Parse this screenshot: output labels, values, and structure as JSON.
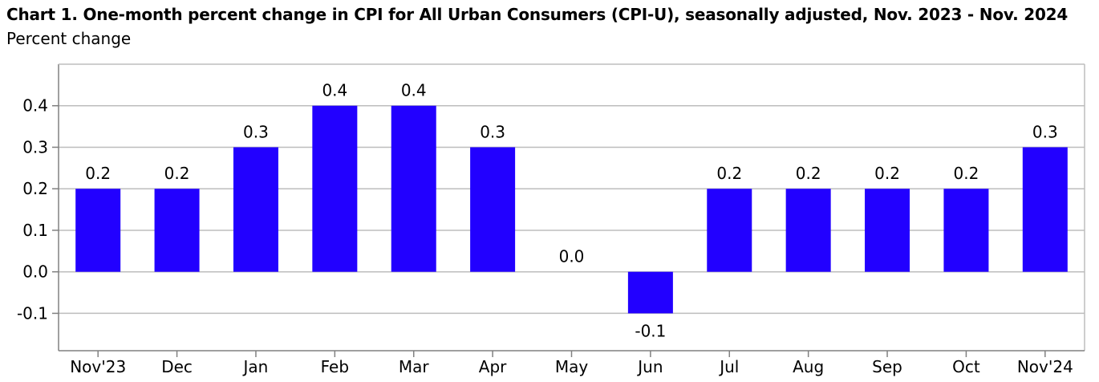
{
  "chart_data": {
    "type": "bar",
    "title": "Chart 1. One-month percent change in CPI for All Urban Consumers (CPI-U), seasonally adjusted, Nov. 2023 - Nov. 2024",
    "subtitle": "Percent change",
    "xlabel": "",
    "ylabel": "",
    "categories": [
      "Nov'23",
      "Dec",
      "Jan",
      "Feb",
      "Mar",
      "Apr",
      "May",
      "Jun",
      "Jul",
      "Aug",
      "Sep",
      "Oct",
      "Nov'24"
    ],
    "values": [
      0.2,
      0.2,
      0.3,
      0.4,
      0.4,
      0.3,
      0.0,
      -0.1,
      0.2,
      0.2,
      0.2,
      0.2,
      0.3
    ],
    "data_labels": [
      "0.2",
      "0.2",
      "0.3",
      "0.4",
      "0.4",
      "0.3",
      "0.0",
      "-0.1",
      "0.2",
      "0.2",
      "0.2",
      "0.2",
      "0.3"
    ],
    "yticks": [
      -0.1,
      0.0,
      0.1,
      0.2,
      0.3,
      0.4
    ],
    "ytick_labels": [
      "-0.1",
      "0.0",
      "0.1",
      "0.2",
      "0.3",
      "0.4"
    ],
    "ylim": [
      -0.19,
      0.5
    ],
    "grid": true,
    "bar_color": "#2200ff",
    "grid_color": "#bdbdbd",
    "axis_color": "#808080"
  }
}
